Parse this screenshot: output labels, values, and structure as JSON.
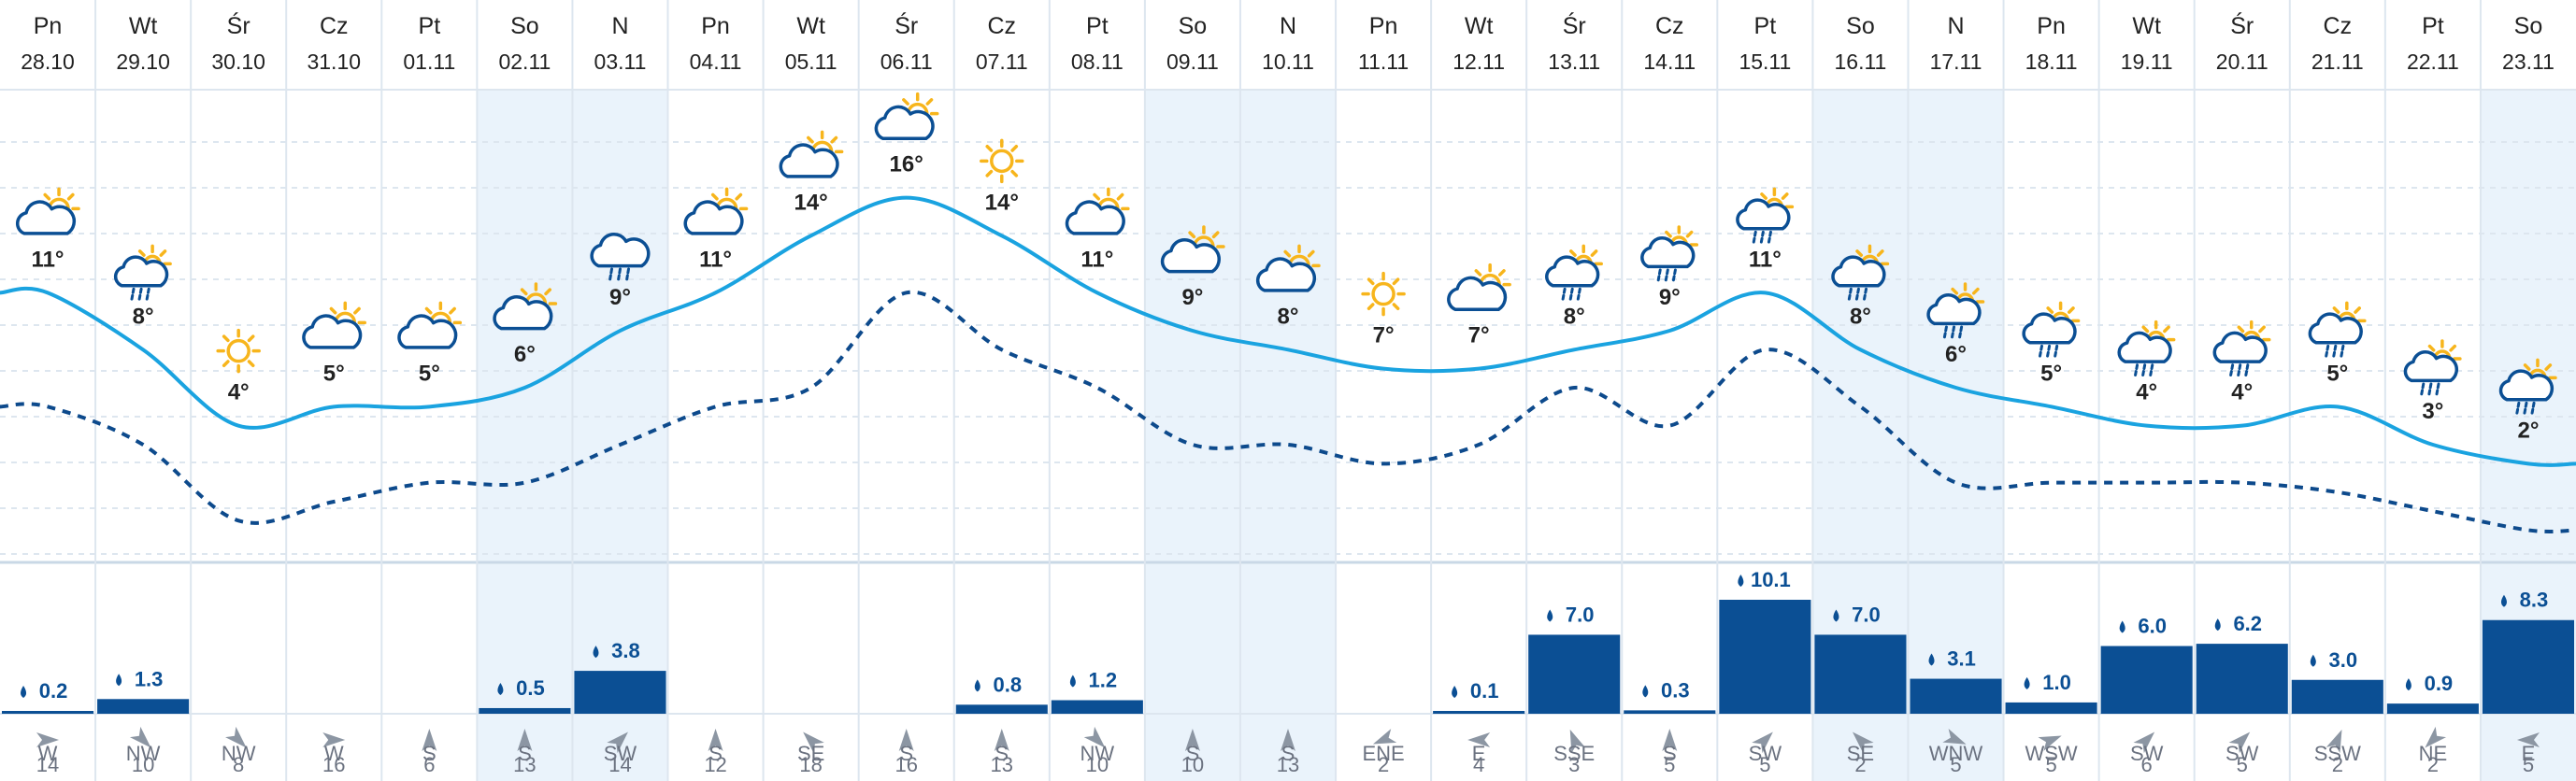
{
  "colors": {
    "temp_line": "#1aa3e0",
    "feels_line": "#0d4a8c",
    "precip_bar": "#0b4f94",
    "weekend_bg": "#eaf3fb",
    "grid": "#dde6ef",
    "text_dark": "#222222",
    "text_muted": "#6b7280",
    "text_blue": "#0b4f94",
    "sun": "#f7b51c",
    "cloud": "#0b4f94"
  },
  "chart_data": {
    "type": "line",
    "days": [
      {
        "dow": "Pn",
        "date": "28.10",
        "icon": "partly-cloudy-icon",
        "temp": 11,
        "temp_label": "11°",
        "feels": 5,
        "precip": 0.2,
        "precip_label": "0.2",
        "wind_dir": "W",
        "wind_deg": 270,
        "wind_speed": "14",
        "weekend": false
      },
      {
        "dow": "Wt",
        "date": "29.10",
        "icon": "sun-cloud-rain-icon",
        "temp": 8,
        "temp_label": "8°",
        "feels": 3,
        "precip": 1.3,
        "precip_label": "1.3",
        "wind_dir": "NW",
        "wind_deg": 315,
        "wind_speed": "10",
        "weekend": false
      },
      {
        "dow": "Śr",
        "date": "30.10",
        "icon": "sun-icon",
        "temp": 4,
        "temp_label": "4°",
        "feels": -1,
        "precip": 0,
        "precip_label": "",
        "wind_dir": "NW",
        "wind_deg": 315,
        "wind_speed": "8",
        "weekend": false
      },
      {
        "dow": "Cz",
        "date": "31.10",
        "icon": "partly-cloudy-icon",
        "temp": 5,
        "temp_label": "5°",
        "feels": 0,
        "precip": 0,
        "precip_label": "",
        "wind_dir": "W",
        "wind_deg": 270,
        "wind_speed": "16",
        "weekend": false
      },
      {
        "dow": "Pt",
        "date": "01.11",
        "icon": "partly-cloudy-icon",
        "temp": 5,
        "temp_label": "5°",
        "feels": 1,
        "precip": 0,
        "precip_label": "",
        "wind_dir": "S",
        "wind_deg": 180,
        "wind_speed": "6",
        "weekend": false
      },
      {
        "dow": "So",
        "date": "02.11",
        "icon": "partly-cloudy-icon",
        "temp": 6,
        "temp_label": "6°",
        "feels": 1,
        "precip": 0.5,
        "precip_label": "0.5",
        "wind_dir": "S",
        "wind_deg": 180,
        "wind_speed": "13",
        "weekend": true
      },
      {
        "dow": "N",
        "date": "03.11",
        "icon": "cloud-rain-icon",
        "temp": 9,
        "temp_label": "9°",
        "feels": 3,
        "precip": 3.8,
        "precip_label": "3.8",
        "wind_dir": "SW",
        "wind_deg": 225,
        "wind_speed": "14",
        "weekend": true
      },
      {
        "dow": "Pn",
        "date": "04.11",
        "icon": "partly-cloudy-icon",
        "temp": 11,
        "temp_label": "11°",
        "feels": 5,
        "precip": 0,
        "precip_label": "",
        "wind_dir": "S",
        "wind_deg": 180,
        "wind_speed": "12",
        "weekend": false
      },
      {
        "dow": "Wt",
        "date": "05.11",
        "icon": "partly-cloudy-icon",
        "temp": 14,
        "temp_label": "14°",
        "feels": 6,
        "precip": 0,
        "precip_label": "",
        "wind_dir": "SE",
        "wind_deg": 135,
        "wind_speed": "18",
        "weekend": false
      },
      {
        "dow": "Śr",
        "date": "06.11",
        "icon": "partly-cloudy-icon",
        "temp": 16,
        "temp_label": "16°",
        "feels": 11,
        "precip": 0,
        "precip_label": "",
        "wind_dir": "S",
        "wind_deg": 180,
        "wind_speed": "16",
        "weekend": false
      },
      {
        "dow": "Cz",
        "date": "07.11",
        "icon": "sun-icon",
        "temp": 14,
        "temp_label": "14°",
        "feels": 8,
        "precip": 0.8,
        "precip_label": "0.8",
        "wind_dir": "S",
        "wind_deg": 180,
        "wind_speed": "13",
        "weekend": false
      },
      {
        "dow": "Pt",
        "date": "08.11",
        "icon": "partly-cloudy-icon",
        "temp": 11,
        "temp_label": "11°",
        "feels": 6,
        "precip": 1.2,
        "precip_label": "1.2",
        "wind_dir": "NW",
        "wind_deg": 315,
        "wind_speed": "10",
        "weekend": false
      },
      {
        "dow": "So",
        "date": "09.11",
        "icon": "partly-cloudy-icon",
        "temp": 9,
        "temp_label": "9°",
        "feels": 3,
        "precip": 0,
        "precip_label": "",
        "wind_dir": "S",
        "wind_deg": 180,
        "wind_speed": "10",
        "weekend": true
      },
      {
        "dow": "N",
        "date": "10.11",
        "icon": "partly-cloudy-icon",
        "temp": 8,
        "temp_label": "8°",
        "feels": 3,
        "precip": 0,
        "precip_label": "",
        "wind_dir": "S",
        "wind_deg": 180,
        "wind_speed": "13",
        "weekend": true
      },
      {
        "dow": "Pn",
        "date": "11.11",
        "icon": "sun-icon",
        "temp": 7,
        "temp_label": "7°",
        "feels": 2,
        "precip": 0,
        "precip_label": "",
        "wind_dir": "ENE",
        "wind_deg": 68,
        "wind_speed": "2",
        "weekend": false
      },
      {
        "dow": "Wt",
        "date": "12.11",
        "icon": "partly-cloudy-icon",
        "temp": 7,
        "temp_label": "7°",
        "feels": 3,
        "precip": 0.1,
        "precip_label": "0.1",
        "wind_dir": "E",
        "wind_deg": 90,
        "wind_speed": "4",
        "weekend": false
      },
      {
        "dow": "Śr",
        "date": "13.11",
        "icon": "sun-cloud-rain-icon",
        "temp": 8,
        "temp_label": "8°",
        "feels": 6,
        "precip": 7.0,
        "precip_label": "7.0",
        "wind_dir": "SSE",
        "wind_deg": 158,
        "wind_speed": "3",
        "weekend": false
      },
      {
        "dow": "Cz",
        "date": "14.11",
        "icon": "sun-cloud-rain-icon",
        "temp": 9,
        "temp_label": "9°",
        "feels": 4,
        "precip": 0.3,
        "precip_label": "0.3",
        "wind_dir": "S",
        "wind_deg": 180,
        "wind_speed": "5",
        "weekend": false
      },
      {
        "dow": "Pt",
        "date": "15.11",
        "icon": "sun-cloud-rain-icon",
        "temp": 11,
        "temp_label": "11°",
        "feels": 8,
        "precip": 10.1,
        "precip_label": "10.1",
        "wind_dir": "SW",
        "wind_deg": 225,
        "wind_speed": "5",
        "weekend": false
      },
      {
        "dow": "So",
        "date": "16.11",
        "icon": "sun-cloud-rain-icon",
        "temp": 8,
        "temp_label": "8°",
        "feels": 5,
        "precip": 7.0,
        "precip_label": "7.0",
        "wind_dir": "SE",
        "wind_deg": 135,
        "wind_speed": "2",
        "weekend": true
      },
      {
        "dow": "N",
        "date": "17.11",
        "icon": "sun-cloud-rain-icon",
        "temp": 6,
        "temp_label": "6°",
        "feels": 1,
        "precip": 3.1,
        "precip_label": "3.1",
        "wind_dir": "WNW",
        "wind_deg": 293,
        "wind_speed": "5",
        "weekend": true
      },
      {
        "dow": "Pn",
        "date": "18.11",
        "icon": "sun-cloud-rain-icon",
        "temp": 5,
        "temp_label": "5°",
        "feels": 1,
        "precip": 1.0,
        "precip_label": "1.0",
        "wind_dir": "WSW",
        "wind_deg": 248,
        "wind_speed": "5",
        "weekend": false
      },
      {
        "dow": "Wt",
        "date": "19.11",
        "icon": "sun-cloud-rain-icon",
        "temp": 4,
        "temp_label": "4°",
        "feels": 1,
        "precip": 6.0,
        "precip_label": "6.0",
        "wind_dir": "SW",
        "wind_deg": 225,
        "wind_speed": "6",
        "weekend": false
      },
      {
        "dow": "Śr",
        "date": "20.11",
        "icon": "sun-cloud-rain-icon",
        "temp": 4,
        "temp_label": "4°",
        "feels": 1,
        "precip": 6.2,
        "precip_label": "6.2",
        "wind_dir": "SW",
        "wind_deg": 225,
        "wind_speed": "5",
        "weekend": false
      },
      {
        "dow": "Cz",
        "date": "21.11",
        "icon": "sun-cloud-rain-icon",
        "temp": 5,
        "temp_label": "5°",
        "feels": 0.5,
        "precip": 3.0,
        "precip_label": "3.0",
        "wind_dir": "SSW",
        "wind_deg": 203,
        "wind_speed": "2",
        "weekend": false
      },
      {
        "dow": "Pt",
        "date": "22.11",
        "icon": "sun-cloud-rain-icon",
        "temp": 3,
        "temp_label": "3°",
        "feels": -0.5,
        "precip": 0.9,
        "precip_label": "0.9",
        "wind_dir": "NE",
        "wind_deg": 45,
        "wind_speed": "2",
        "weekend": false
      },
      {
        "dow": "So",
        "date": "23.11",
        "icon": "sun-cloud-rain-icon",
        "temp": 2,
        "temp_label": "2°",
        "feels": -1.5,
        "precip": 8.3,
        "precip_label": "8.3",
        "wind_dir": "E",
        "wind_deg": 90,
        "wind_speed": "5",
        "weekend": true
      }
    ],
    "precip_max": 10.1
  }
}
